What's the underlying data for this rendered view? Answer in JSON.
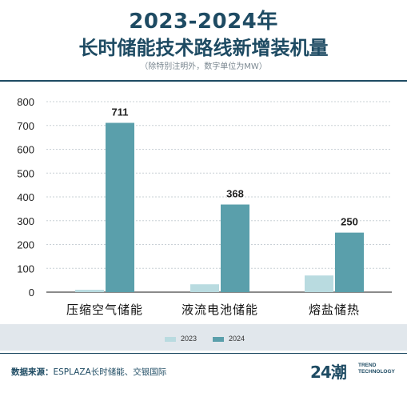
{
  "header": {
    "title_line1": "2023-2024年",
    "title_line2": "长时储能技术路线新增装机量",
    "note": "（除特别注明外，数字单位为MW）"
  },
  "chart_data": {
    "type": "bar",
    "categories": [
      "压缩空气储能",
      "液流电池储能",
      "熔盐储热"
    ],
    "series": [
      {
        "name": "2023",
        "values": [
          10,
          33,
          70
        ],
        "color": "#b9dbe0"
      },
      {
        "name": "2024",
        "values": [
          711,
          368,
          250
        ],
        "color": "#5a9fab"
      }
    ],
    "data_labels": [
      "711",
      "368",
      "250"
    ],
    "y_ticks": [
      0,
      100,
      200,
      300,
      400,
      500,
      600,
      700,
      800
    ],
    "ylim": [
      0,
      800
    ],
    "grid": true,
    "legend_position": "bottom"
  },
  "footer": {
    "source_label": "数据来源：",
    "source_text": "ESPLAZA长时储能、交银国际",
    "brand_number": "24潮",
    "brand_line1": "TREND",
    "brand_line2": "TECHNOLOGY"
  }
}
